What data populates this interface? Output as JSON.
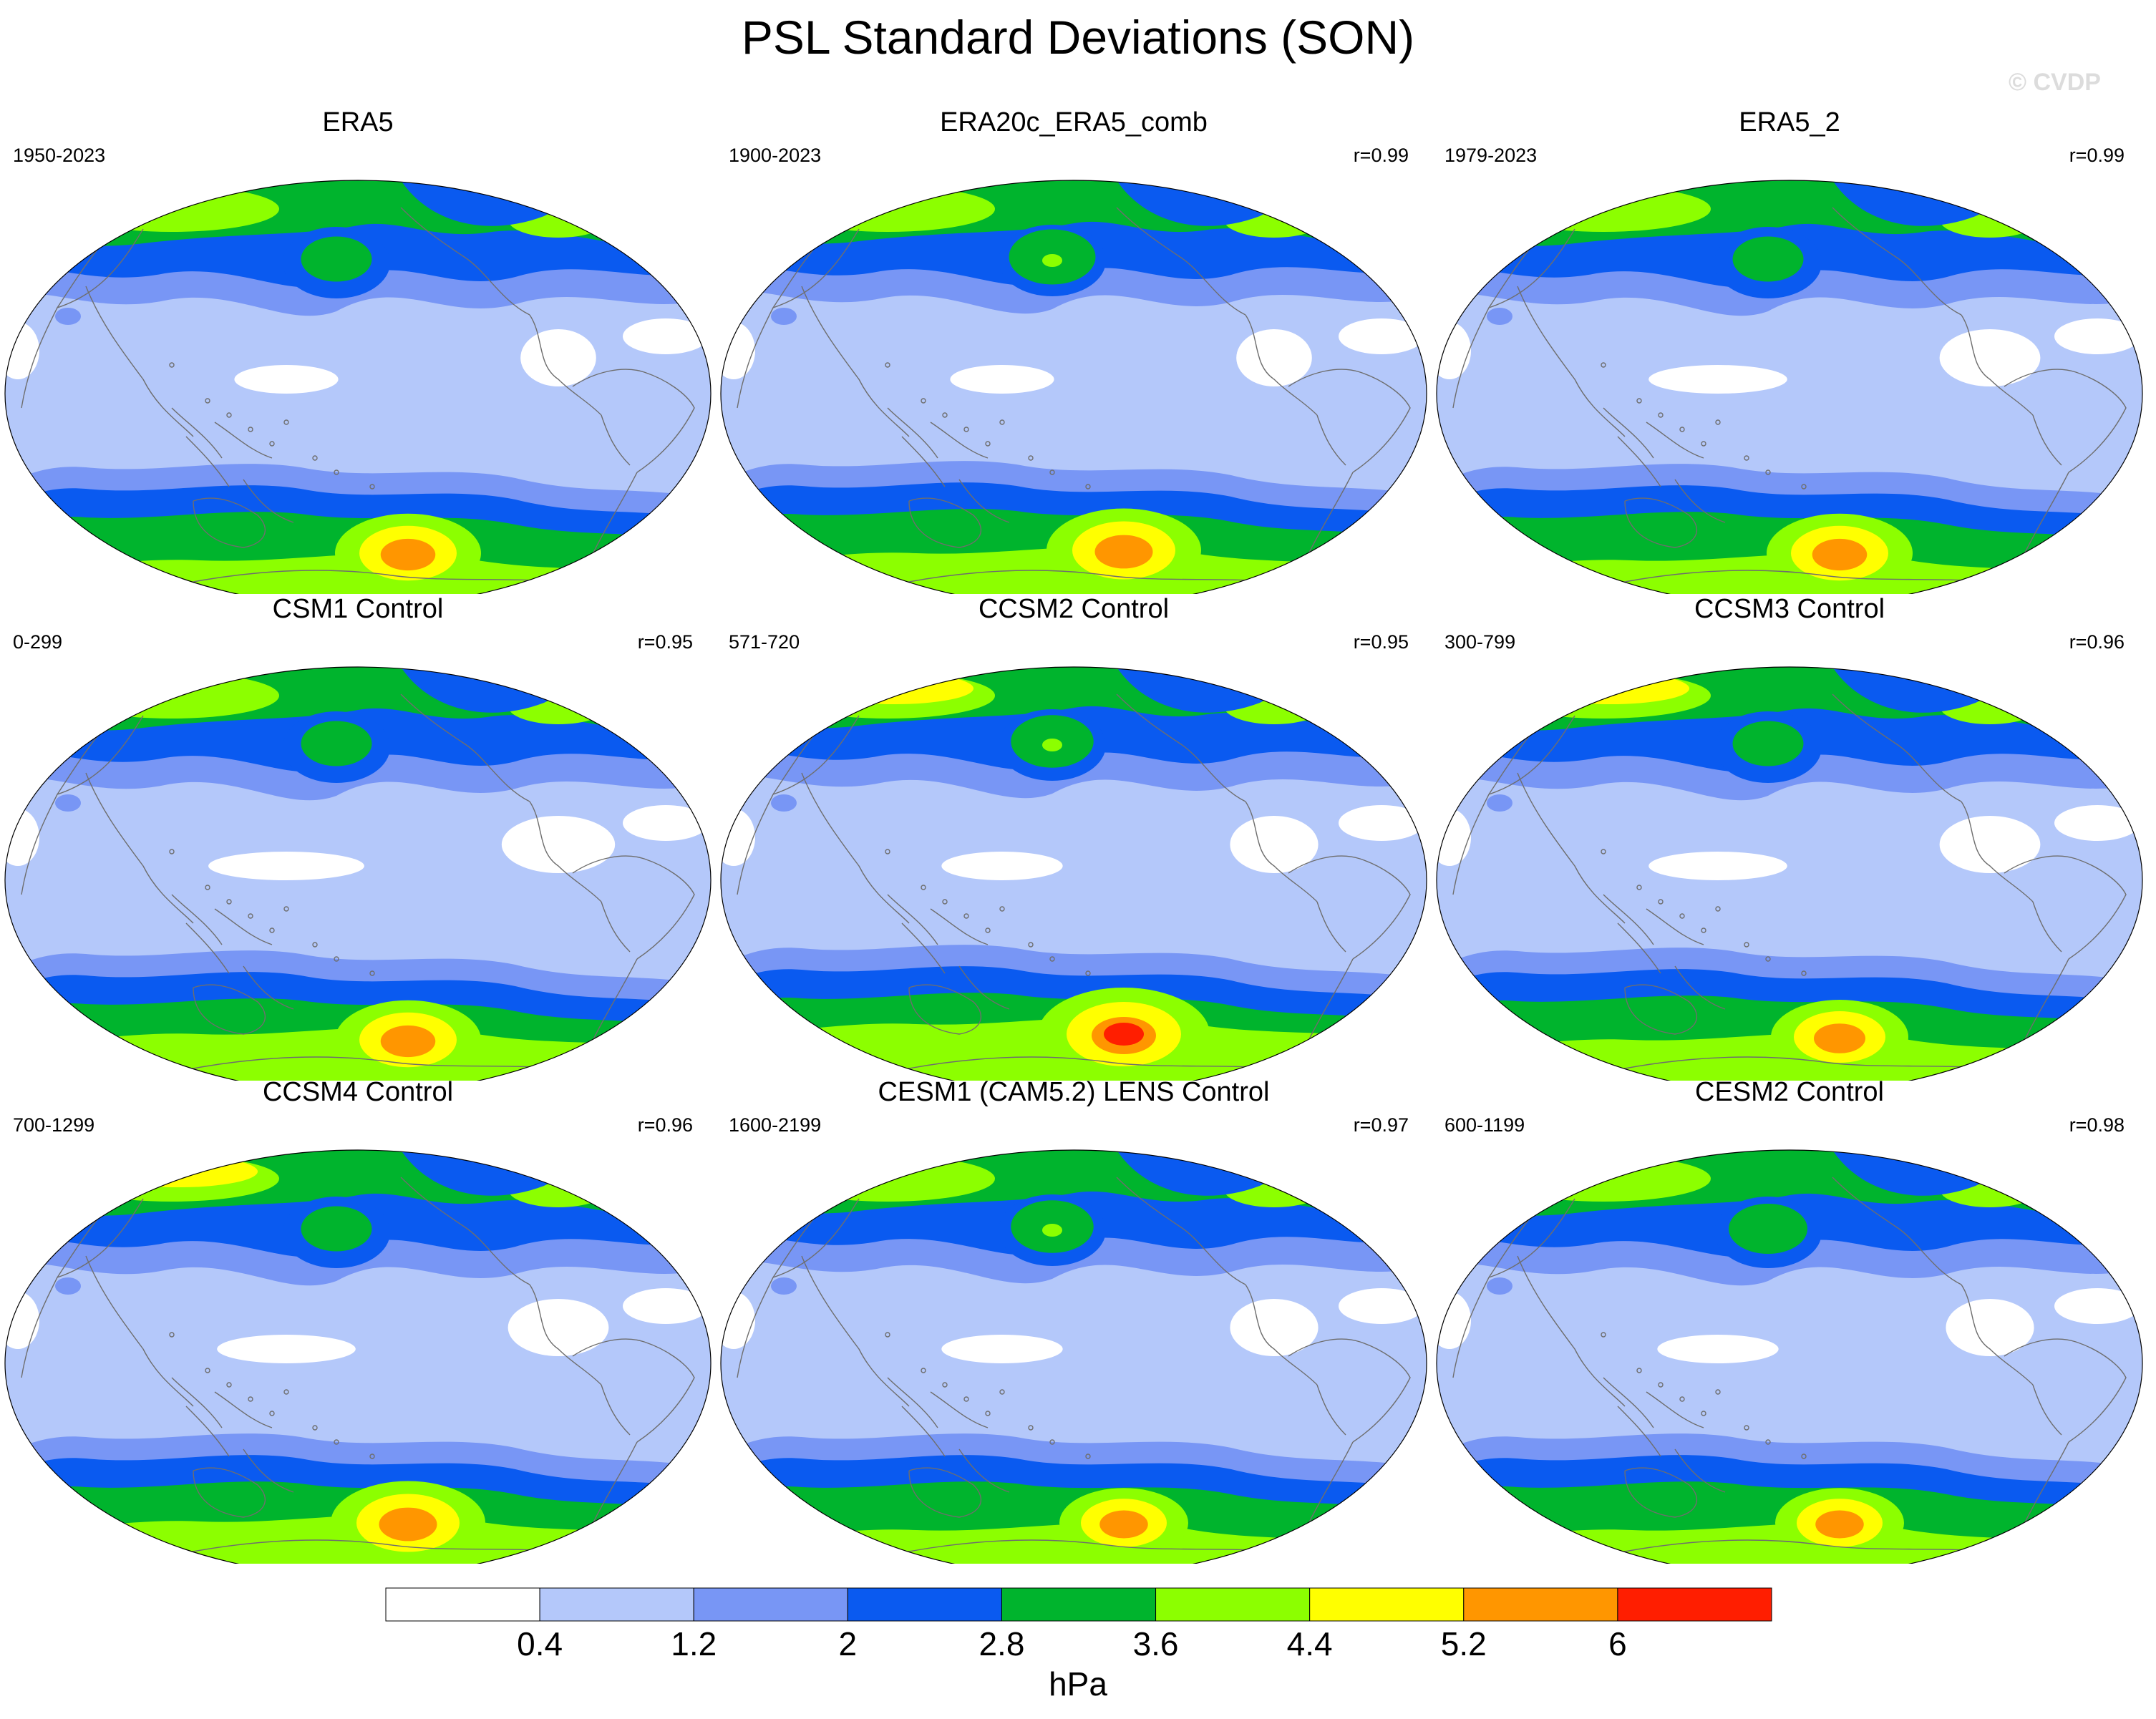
{
  "figure": {
    "title": "PSL Standard Deviations (SON)",
    "watermark": "© CVDP"
  },
  "panels": [
    {
      "title": "ERA5",
      "period": "1950-2023",
      "correlation": "",
      "features": {
        "nh_ring": 0.55,
        "nh_arctic": 0.55,
        "aleutian_core": 0.4,
        "sh_band": 0.55,
        "sh_polar": 0.6,
        "sh_max": 0.85,
        "tropical_low": 0.3
      }
    },
    {
      "title": "ERA20c_ERA5_comb",
      "period": "1900-2023",
      "correlation": "r=0.99",
      "features": {
        "nh_ring": 0.6,
        "nh_arctic": 0.55,
        "aleutian_core": 0.6,
        "sh_band": 0.6,
        "sh_polar": 0.65,
        "sh_max": 0.9,
        "tropical_low": 0.3
      }
    },
    {
      "title": "ERA5_2",
      "period": "1979-2023",
      "correlation": "r=0.99",
      "features": {
        "nh_ring": 0.55,
        "nh_arctic": 0.55,
        "aleutian_core": 0.4,
        "sh_band": 0.55,
        "sh_polar": 0.6,
        "sh_max": 0.85,
        "tropical_low": 0.4
      }
    },
    {
      "title": "CSM1 Control",
      "period": "0-299",
      "correlation": "r=0.95",
      "features": {
        "nh_ring": 0.6,
        "nh_arctic": 0.6,
        "aleutian_core": 0.4,
        "sh_band": 0.55,
        "sh_polar": 0.75,
        "sh_max": 0.85,
        "tropical_low": 0.45
      }
    },
    {
      "title": "CCSM2 Control",
      "period": "571-720",
      "correlation": "r=0.95",
      "features": {
        "nh_ring": 0.65,
        "nh_arctic": 0.75,
        "aleutian_core": 0.55,
        "sh_band": 0.65,
        "sh_polar": 0.8,
        "sh_max": 1.0,
        "tropical_low": 0.35
      }
    },
    {
      "title": "CCSM3 Control",
      "period": "300-799",
      "correlation": "r=0.96",
      "features": {
        "nh_ring": 0.6,
        "nh_arctic": 0.75,
        "aleutian_core": 0.4,
        "sh_band": 0.6,
        "sh_polar": 0.65,
        "sh_max": 0.8,
        "tropical_low": 0.4
      }
    },
    {
      "title": "CCSM4 Control",
      "period": "700-1299",
      "correlation": "r=0.96",
      "features": {
        "nh_ring": 0.55,
        "nh_arctic": 0.7,
        "aleutian_core": 0.4,
        "sh_band": 0.55,
        "sh_polar": 0.7,
        "sh_max": 0.9,
        "tropical_low": 0.4
      }
    },
    {
      "title": "CESM1 (CAM5.2) LENS Control",
      "period": "1600-2199",
      "correlation": "r=0.97",
      "features": {
        "nh_ring": 0.6,
        "nh_arctic": 0.6,
        "aleutian_core": 0.55,
        "sh_band": 0.55,
        "sh_polar": 0.6,
        "sh_max": 0.75,
        "tropical_low": 0.35
      }
    },
    {
      "title": "CESM2 Control",
      "period": "600-1199",
      "correlation": "r=0.98",
      "features": {
        "nh_ring": 0.55,
        "nh_arctic": 0.6,
        "aleutian_core": 0.5,
        "sh_band": 0.55,
        "sh_polar": 0.6,
        "sh_max": 0.75,
        "tropical_low": 0.35
      }
    }
  ],
  "colorbar": {
    "units": "hPa",
    "tick_labels": [
      "0.4",
      "1.2",
      "2",
      "2.8",
      "3.6",
      "4.4",
      "5.2",
      "6"
    ],
    "colors": [
      "#ffffff",
      "#b4c8fa",
      "#7896f5",
      "#0a5af0",
      "#00b42d",
      "#8cff00",
      "#ffff00",
      "#ff9600",
      "#ff1e00"
    ]
  }
}
